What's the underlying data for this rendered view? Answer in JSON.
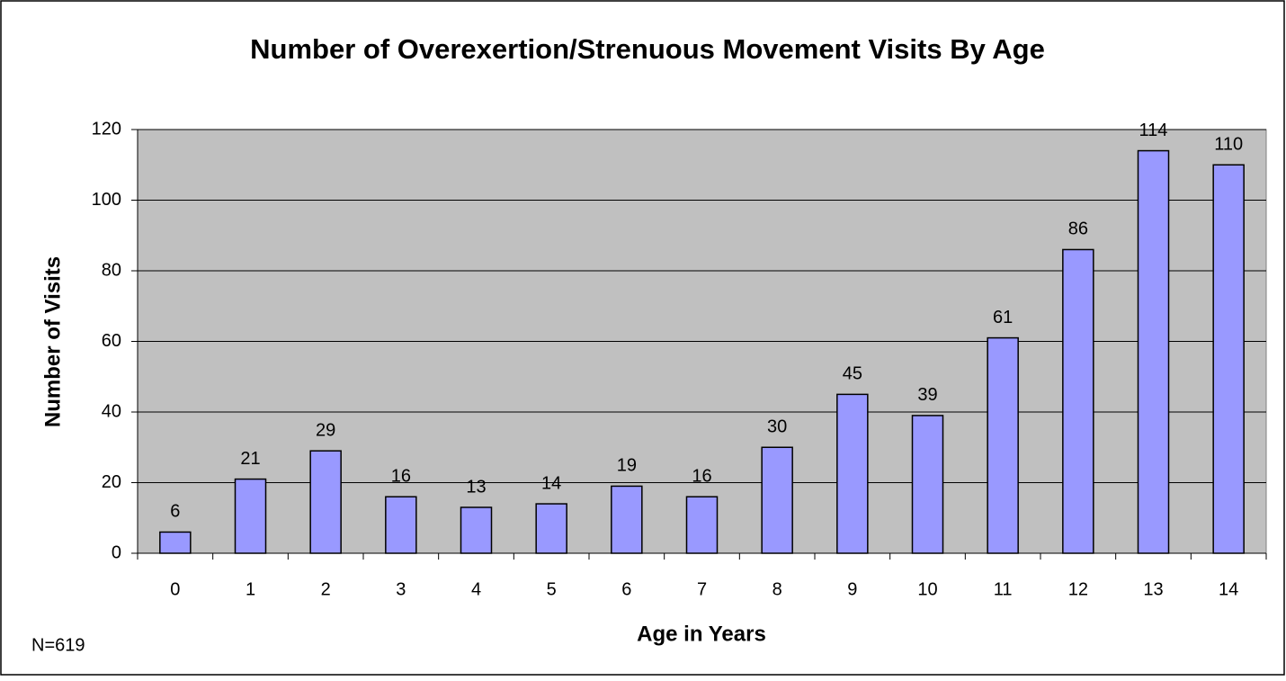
{
  "chart_data": {
    "type": "bar",
    "title": "Number of Overexertion/Strenuous Movement Visits By Age",
    "x_label": "Age in Years",
    "y_label": "Number of Visits",
    "annotation": "N=619",
    "categories": [
      "0",
      "1",
      "2",
      "3",
      "4",
      "5",
      "6",
      "7",
      "8",
      "9",
      "10",
      "11",
      "12",
      "13",
      "14"
    ],
    "values": [
      6,
      21,
      29,
      16,
      13,
      14,
      19,
      16,
      30,
      45,
      39,
      61,
      86,
      114,
      110
    ],
    "color": "#9999ff",
    "ylim": [
      0,
      120
    ],
    "yticks": [
      0,
      20,
      40,
      60,
      80,
      100,
      120
    ],
    "grid": true
  }
}
